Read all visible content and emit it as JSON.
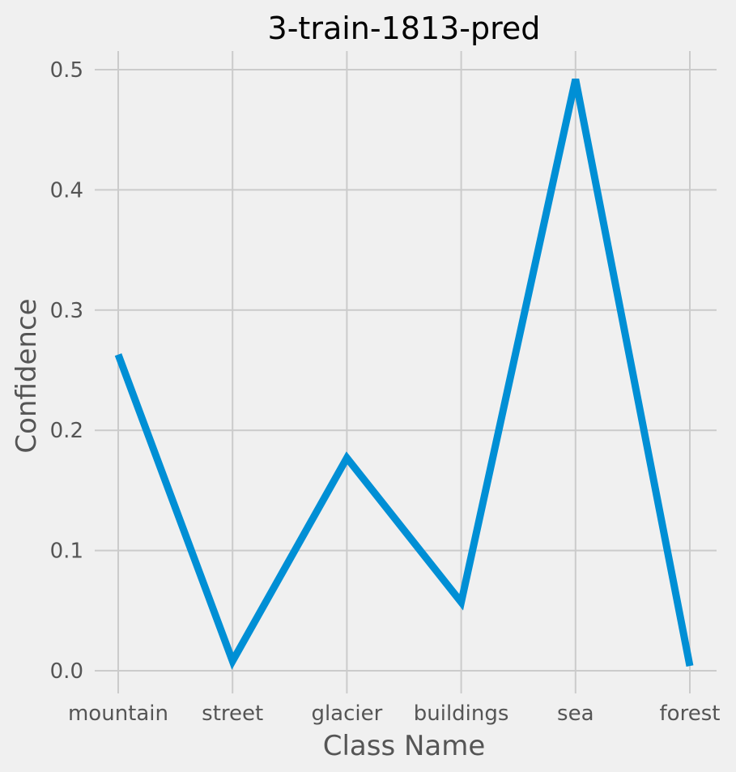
{
  "chart_data": {
    "type": "line",
    "title": "3-train-1813-pred",
    "xlabel": "Class Name",
    "ylabel": "Confidence",
    "categories": [
      "mountain",
      "street",
      "glacier",
      "buildings",
      "sea",
      "forest"
    ],
    "values": [
      0.263,
      0.008,
      0.177,
      0.057,
      0.492,
      0.004
    ],
    "yticks": [
      "0.0",
      "0.1",
      "0.2",
      "0.3",
      "0.4",
      "0.5"
    ],
    "ylim": [
      -0.015,
      0.515
    ],
    "grid": true,
    "line_color": "#008fd5",
    "background": "#f0f0f0"
  }
}
